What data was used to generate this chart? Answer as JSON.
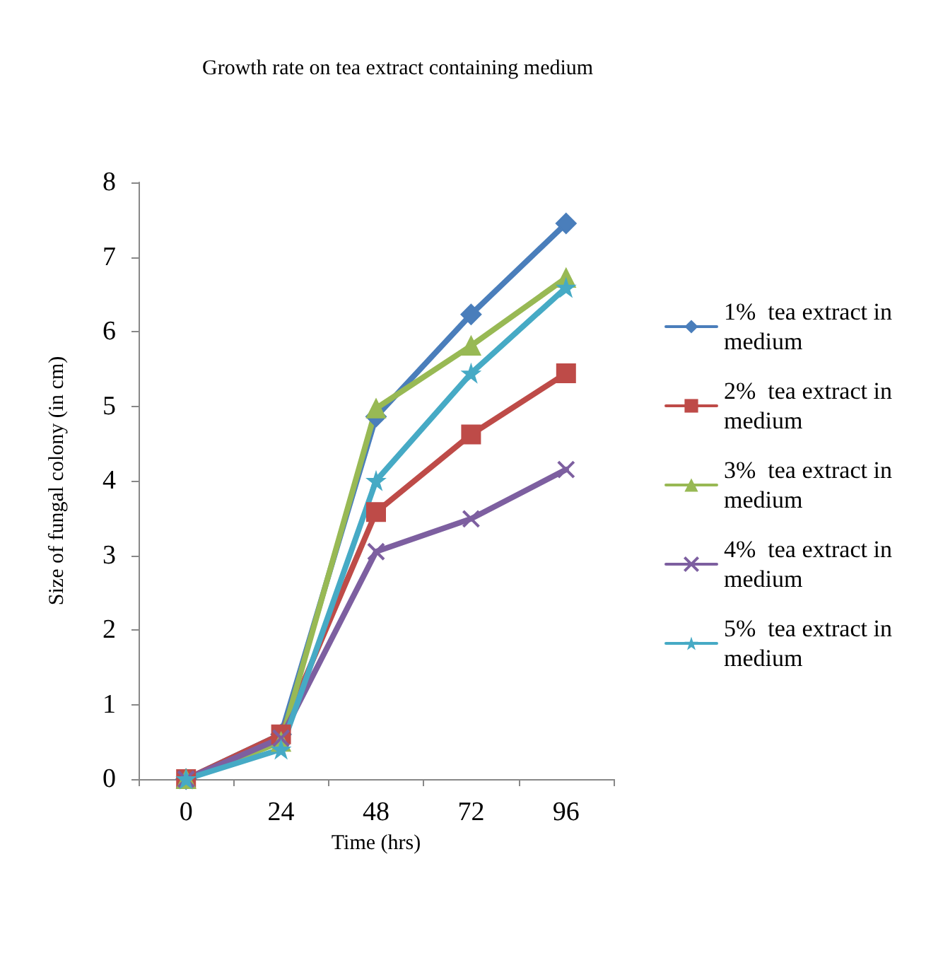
{
  "chart_data": {
    "type": "line",
    "title": "Growth rate on tea extract containing medium",
    "xlabel": "Time (hrs)",
    "ylabel": "Size of fungal colony (in cm)",
    "categories": [
      "0",
      "24",
      "48",
      "72",
      "96"
    ],
    "ylim": [
      0,
      8
    ],
    "yticks": [
      0,
      1,
      2,
      3,
      4,
      5,
      6,
      7,
      8
    ],
    "grid": false,
    "legend": "right",
    "series": [
      {
        "name": "1%  tea extract in medium",
        "color": "#4a7ebb",
        "marker": "diamond",
        "values": [
          0,
          0.6,
          4.86,
          6.23,
          7.45
        ]
      },
      {
        "name": "2%  tea extract in medium",
        "color": "#be4b48",
        "marker": "square",
        "values": [
          0,
          0.6,
          3.58,
          4.62,
          5.44
        ]
      },
      {
        "name": "3%  tea extract in medium",
        "color": "#98b954",
        "marker": "triangle",
        "values": [
          0,
          0.5,
          4.97,
          5.81,
          6.72
        ]
      },
      {
        "name": "4%  tea extract in medium",
        "color": "#7d5fa0",
        "marker": "cross",
        "values": [
          0,
          0.55,
          3.05,
          3.49,
          4.15
        ]
      },
      {
        "name": "5%  tea extract in medium",
        "color": "#46aac5",
        "marker": "star",
        "values": [
          0,
          0.4,
          4.0,
          5.44,
          6.59
        ]
      }
    ]
  }
}
